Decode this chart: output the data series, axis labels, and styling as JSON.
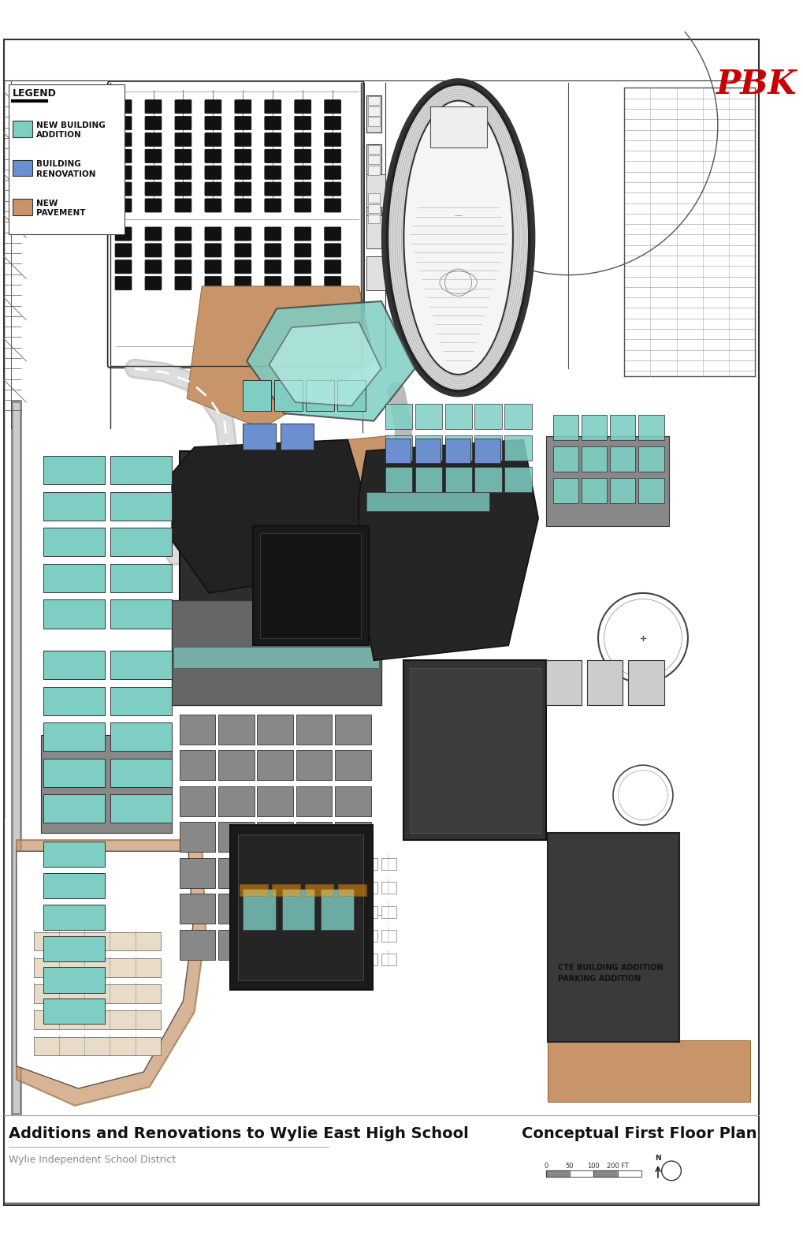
{
  "title_left": "Additions and Renovations to Wylie East High School",
  "subtitle_left": "Wylie Independent School District",
  "title_right": "Conceptual First Floor Plan",
  "pbk_text": "PBK",
  "pbk_color": "#cc0000",
  "legend_title": "LEGEND",
  "legend_items": [
    {
      "label": "NEW BUILDING\nADDITION",
      "color": "#7ecec4"
    },
    {
      "label": "BUILDING\nRENOVATION",
      "color": "#6b8fcf"
    },
    {
      "label": "NEW\nPAVEMENT",
      "color": "#c8956a"
    }
  ],
  "scale_labels": [
    "0",
    "50",
    "100",
    "200 FT"
  ],
  "bg_color": "#ffffff",
  "cte_label": "CTE BUILDING ADDITION\nPARKING ADDITION"
}
